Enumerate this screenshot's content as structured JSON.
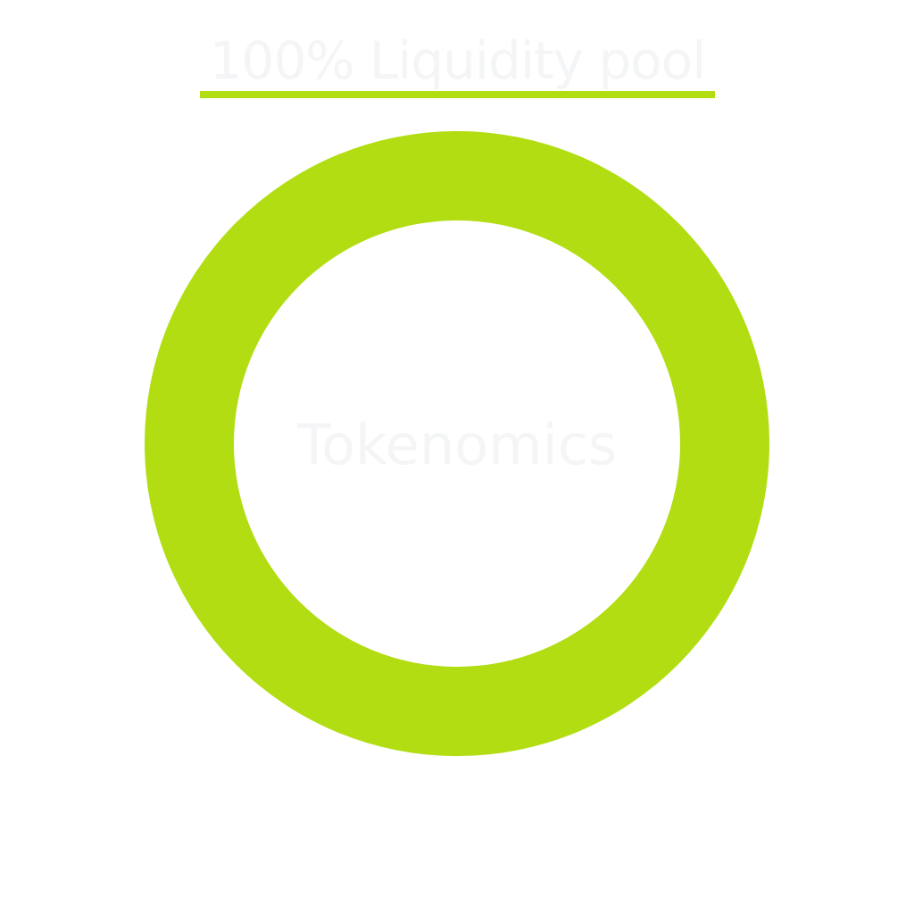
{
  "chart_data": {
    "type": "pie",
    "style": "donut",
    "title": "",
    "center_label": "Tokenomics",
    "categories": [
      "Liquidity pool"
    ],
    "values": [
      100
    ],
    "legend": {
      "placement": "top",
      "entries": [
        {
          "label": "100% Liquidity pool",
          "color": "#b2dd12"
        }
      ]
    },
    "slice_colors": [
      "#b2dd12"
    ],
    "text_color": "#f4f5f7"
  }
}
